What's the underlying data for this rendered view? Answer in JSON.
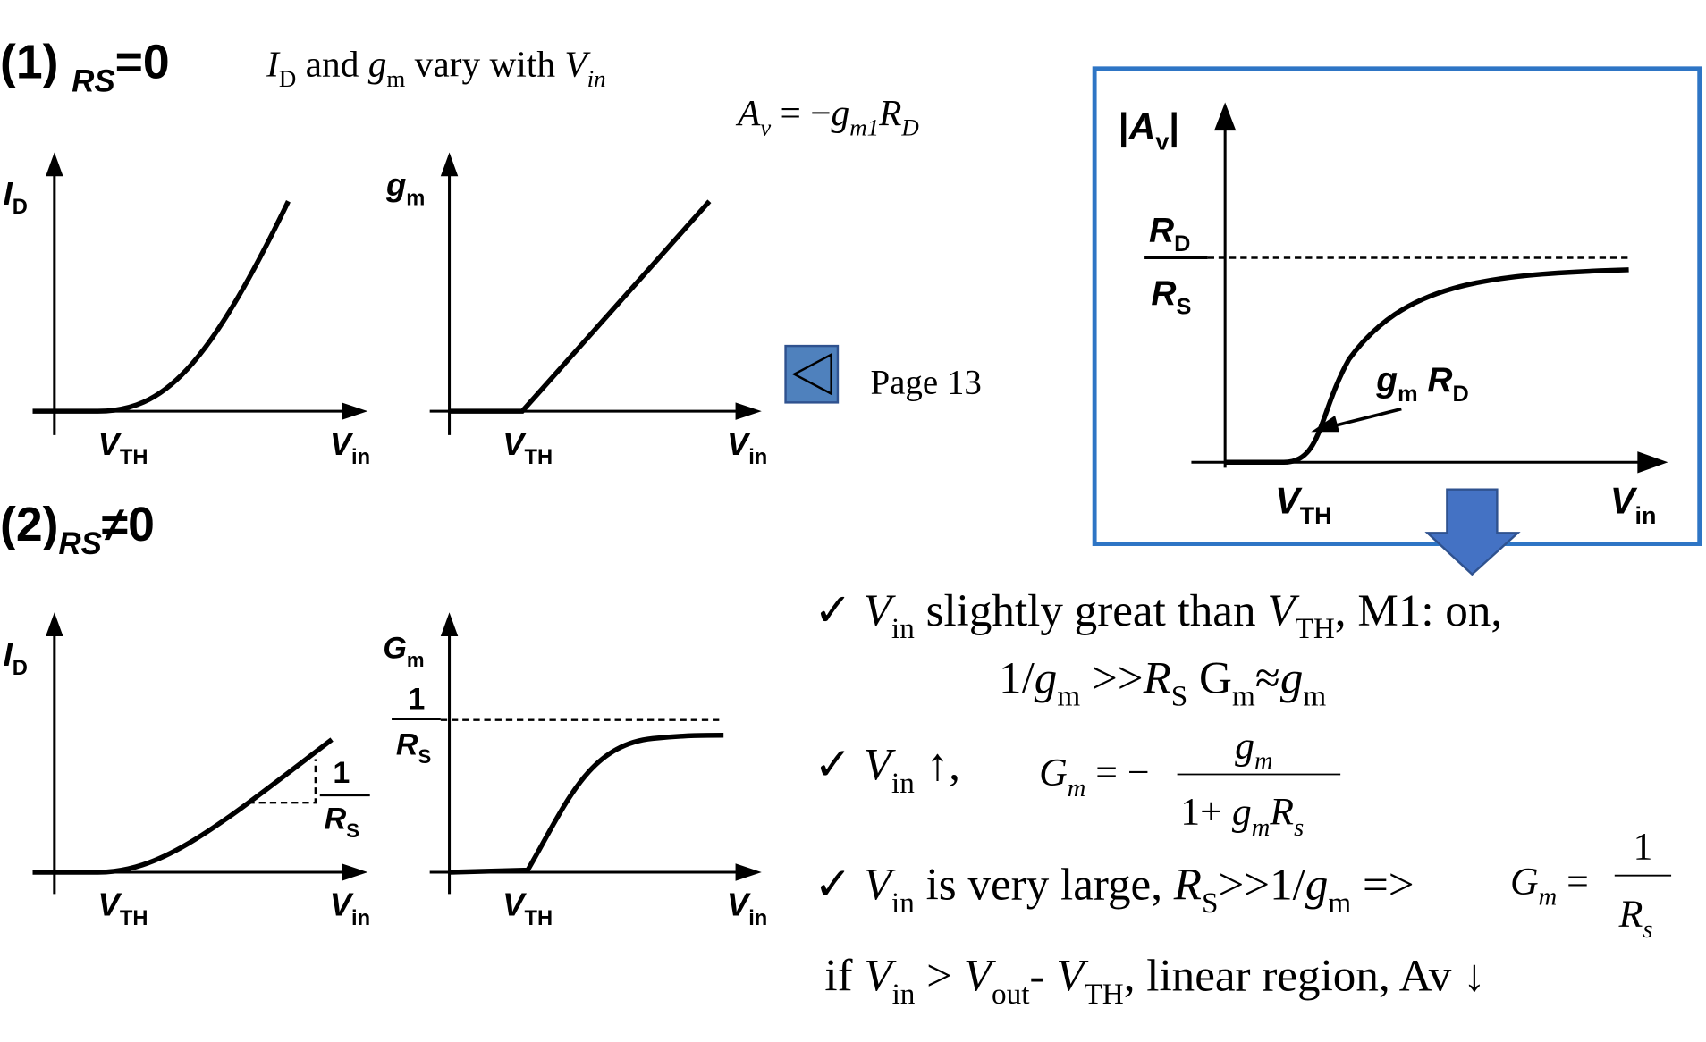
{
  "section1": {
    "title": [
      "(1) ",
      "R",
      "S",
      "=0"
    ],
    "description": [
      "I",
      "D",
      " and ",
      "g",
      "m",
      " vary with ",
      "V",
      "in"
    ],
    "formula": [
      "A",
      "v",
      "  =  −",
      "g",
      "m1",
      "R",
      "D"
    ]
  },
  "chart_id_1": {
    "y_label": [
      "I",
      "D"
    ],
    "x_tick": [
      "V",
      "TH"
    ],
    "x_label": [
      "V",
      "in"
    ]
  },
  "chart_gm_1": {
    "y_label": [
      "g",
      "m"
    ],
    "x_tick": [
      "V",
      "TH"
    ],
    "x_label": [
      "V",
      "in"
    ]
  },
  "page_link": "Page 13",
  "section2": {
    "title": [
      "(2)",
      "R",
      "S",
      "≠0"
    ]
  },
  "chart_id_2": {
    "y_label": [
      "I",
      "D"
    ],
    "x_tick": [
      "V",
      "TH"
    ],
    "x_label": [
      "V",
      "in"
    ],
    "slope_num": "1",
    "slope_den": [
      "R",
      "S"
    ]
  },
  "chart_gm_2": {
    "y_label": [
      "G",
      "m"
    ],
    "asym_num": "1",
    "asym_den": [
      "R",
      "S"
    ],
    "x_tick": [
      "V",
      "TH"
    ],
    "x_label": [
      "V",
      "in"
    ]
  },
  "chart_av": {
    "y_label": [
      "|",
      "A",
      "v",
      "|"
    ],
    "asym_num": [
      "R",
      "D"
    ],
    "asym_den": [
      "R",
      "S"
    ],
    "annotation": [
      "g",
      "m",
      " R",
      "D"
    ],
    "x_tick": [
      "V",
      "TH"
    ],
    "x_label": [
      "V",
      "in"
    ]
  },
  "bullets": {
    "b1_line1": [
      "✓ ",
      "V",
      "in",
      " slightly great than ",
      "V",
      "TH",
      ", M1: on,"
    ],
    "b1_line2": [
      "1/",
      "g",
      "m",
      " >>",
      "R",
      "S",
      "  G",
      "m",
      "≈",
      "g",
      "m"
    ],
    "b2": [
      "✓ ",
      "V",
      "in",
      " ↑,"
    ],
    "b2_formula_lhs": [
      "G",
      "m",
      " = −"
    ],
    "b2_formula_num": [
      "g",
      "m"
    ],
    "b2_formula_den": [
      "1+ ",
      "g",
      "m",
      "R",
      "s"
    ],
    "b3": [
      "✓ ",
      "V",
      "in",
      " is very large, ",
      "R",
      "S",
      ">>1/",
      "g",
      "m",
      " =>"
    ],
    "b3_formula_lhs": [
      "G",
      "m",
      " ="
    ],
    "b3_formula_num": "1",
    "b3_formula_den": [
      "R",
      "s"
    ],
    "b4": [
      "if ",
      "V",
      "in",
      " > ",
      "V",
      "out",
      "- ",
      "V",
      "TH",
      ", linear region, Av ↓"
    ]
  }
}
